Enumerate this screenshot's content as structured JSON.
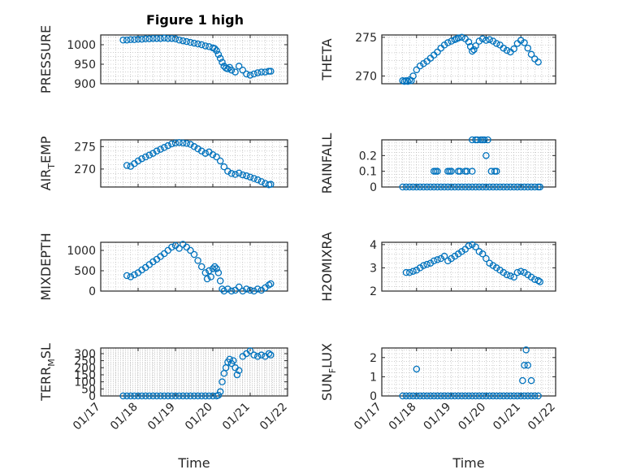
{
  "figure": {
    "title": "Figure 1 high"
  },
  "chart_data": [
    {
      "id": "pressure",
      "type": "scatter",
      "ylabel": "PRESSURE",
      "ylim": [
        900,
        1025
      ],
      "yticks": [
        900,
        950,
        1000
      ],
      "x": [
        17.6,
        17.7,
        17.8,
        17.9,
        18.0,
        18.1,
        18.2,
        18.3,
        18.4,
        18.5,
        18.6,
        18.7,
        18.8,
        18.9,
        19.0,
        19.1,
        19.2,
        19.3,
        19.4,
        19.5,
        19.6,
        19.7,
        19.8,
        19.9,
        20.0,
        20.05,
        20.1,
        20.15,
        20.2,
        20.25,
        20.3,
        20.35,
        20.4,
        20.45,
        20.5,
        20.6,
        20.7,
        20.8,
        20.9,
        21.0,
        21.1,
        21.2,
        21.3,
        21.4,
        21.5,
        21.55
      ],
      "y": [
        1012,
        1012,
        1013,
        1013,
        1014,
        1014,
        1015,
        1015,
        1016,
        1016,
        1016,
        1017,
        1016,
        1016,
        1015,
        1012,
        1010,
        1008,
        1006,
        1004,
        1002,
        1000,
        997,
        995,
        992,
        990,
        985,
        975,
        965,
        955,
        945,
        940,
        938,
        942,
        935,
        930,
        945,
        935,
        925,
        922,
        925,
        928,
        930,
        930,
        932,
        932
      ]
    },
    {
      "id": "theta",
      "type": "scatter",
      "ylabel": "THETA",
      "ylim": [
        269,
        275.3
      ],
      "yticks": [
        270,
        275
      ],
      "x": [
        17.6,
        17.65,
        17.7,
        17.75,
        17.8,
        17.85,
        17.9,
        18.0,
        18.1,
        18.2,
        18.3,
        18.4,
        18.5,
        18.6,
        18.7,
        18.8,
        18.9,
        19.0,
        19.1,
        19.15,
        19.2,
        19.3,
        19.4,
        19.5,
        19.55,
        19.6,
        19.65,
        19.7,
        19.8,
        19.9,
        20.0,
        20.1,
        20.2,
        20.3,
        20.4,
        20.5,
        20.6,
        20.7,
        20.8,
        20.9,
        21.0,
        21.1,
        21.2,
        21.3,
        21.4,
        21.5
      ],
      "y": [
        269.4,
        269.3,
        269.4,
        269.3,
        269.5,
        269.4,
        270.0,
        270.8,
        271.3,
        271.6,
        271.9,
        272.3,
        272.7,
        273.1,
        273.6,
        274.0,
        274.3,
        274.5,
        274.7,
        274.8,
        274.9,
        275.0,
        274.8,
        274.4,
        273.8,
        273.2,
        273.4,
        273.9,
        274.5,
        274.8,
        274.6,
        274.7,
        274.5,
        274.2,
        274.0,
        273.6,
        273.3,
        273.1,
        273.5,
        274.2,
        274.6,
        274.3,
        273.6,
        272.8,
        272.2,
        271.8
      ]
    },
    {
      "id": "airtemp",
      "type": "scatter",
      "ylabel": "AIR_TEMP",
      "ylim": [
        266,
        276.5
      ],
      "yticks": [
        270,
        275
      ],
      "x": [
        17.7,
        17.8,
        17.9,
        18.0,
        18.1,
        18.2,
        18.3,
        18.4,
        18.5,
        18.6,
        18.7,
        18.8,
        18.9,
        19.0,
        19.1,
        19.2,
        19.3,
        19.4,
        19.5,
        19.6,
        19.7,
        19.8,
        19.9,
        20.0,
        20.1,
        20.2,
        20.3,
        20.4,
        20.5,
        20.6,
        20.7,
        20.8,
        20.9,
        21.0,
        21.1,
        21.2,
        21.3,
        21.4,
        21.5,
        21.55
      ],
      "y": [
        270.8,
        270.6,
        271.2,
        271.8,
        272.3,
        272.7,
        273.1,
        273.5,
        274.0,
        274.4,
        274.8,
        275.2,
        275.6,
        275.8,
        275.9,
        275.8,
        275.7,
        275.5,
        275.0,
        274.5,
        274.0,
        273.5,
        273.8,
        273.2,
        272.7,
        271.8,
        270.5,
        269.5,
        269.0,
        268.8,
        269.1,
        268.7,
        268.5,
        268.2,
        267.9,
        267.6,
        267.2,
        266.8,
        266.5,
        266.6
      ]
    },
    {
      "id": "rainfall",
      "type": "scatter",
      "ylabel": "RAINFALL",
      "ylim": [
        0,
        0.3
      ],
      "yticks": [
        0,
        0.1,
        0.2
      ],
      "x": [
        17.6,
        17.7,
        17.8,
        17.9,
        18.0,
        18.1,
        18.2,
        18.3,
        18.4,
        18.5,
        18.6,
        18.7,
        18.8,
        18.9,
        19.0,
        19.1,
        19.2,
        19.3,
        19.4,
        19.5,
        19.6,
        19.7,
        19.8,
        19.9,
        20.0,
        20.1,
        20.2,
        20.3,
        20.4,
        20.5,
        20.6,
        20.7,
        20.8,
        20.9,
        21.0,
        21.1,
        21.2,
        21.3,
        21.4,
        21.5,
        21.55,
        18.5,
        18.55,
        18.6,
        18.9,
        18.95,
        19.0,
        19.2,
        19.25,
        19.4,
        19.45,
        19.6,
        19.75,
        19.85,
        19.95,
        19.7,
        19.9,
        20.05,
        20.15,
        20.25,
        20.3,
        19.6,
        20.0
      ],
      "y": [
        0,
        0,
        0,
        0,
        0,
        0,
        0,
        0,
        0,
        0,
        0,
        0,
        0,
        0,
        0,
        0,
        0,
        0,
        0,
        0,
        0,
        0,
        0,
        0,
        0,
        0,
        0,
        0,
        0,
        0,
        0,
        0,
        0,
        0,
        0,
        0,
        0,
        0,
        0,
        0,
        0,
        0.1,
        0.1,
        0.1,
        0.1,
        0.1,
        0.1,
        0.1,
        0.1,
        0.1,
        0.1,
        0.3,
        0.3,
        0.3,
        0.3,
        0.3,
        0.3,
        0.3,
        0.1,
        0.1,
        0.1,
        0.1,
        0.2
      ]
    },
    {
      "id": "mixdepth",
      "type": "scatter",
      "ylabel": "MIXDEPTH",
      "ylim": [
        0,
        1200
      ],
      "yticks": [
        0,
        500,
        1000
      ],
      "x": [
        17.7,
        17.8,
        17.9,
        18.0,
        18.1,
        18.2,
        18.3,
        18.4,
        18.5,
        18.6,
        18.7,
        18.8,
        18.9,
        19.0,
        19.1,
        19.2,
        19.3,
        19.4,
        19.5,
        19.6,
        19.7,
        19.8,
        19.85,
        19.9,
        19.95,
        20.0,
        20.05,
        20.1,
        20.15,
        20.2,
        20.25,
        20.3,
        20.4,
        20.5,
        20.6,
        20.7,
        20.8,
        20.9,
        21.0,
        21.1,
        21.2,
        21.3,
        21.4,
        21.5,
        21.55
      ],
      "y": [
        380,
        350,
        400,
        450,
        520,
        580,
        650,
        720,
        780,
        850,
        920,
        1000,
        1080,
        1120,
        1050,
        1150,
        1080,
        1000,
        900,
        750,
        600,
        450,
        300,
        500,
        350,
        550,
        600,
        550,
        450,
        250,
        50,
        0,
        50,
        0,
        20,
        100,
        0,
        50,
        20,
        0,
        50,
        20,
        80,
        150,
        180
      ]
    },
    {
      "id": "h2omixra",
      "type": "scatter",
      "ylabel": "H2OMIXRA",
      "ylim": [
        2,
        4.1
      ],
      "yticks": [
        2,
        3,
        4
      ],
      "x": [
        17.7,
        17.8,
        17.9,
        18.0,
        18.1,
        18.2,
        18.3,
        18.4,
        18.5,
        18.6,
        18.7,
        18.8,
        18.9,
        19.0,
        19.1,
        19.2,
        19.3,
        19.4,
        19.5,
        19.6,
        19.7,
        19.8,
        19.9,
        20.0,
        20.1,
        20.2,
        20.3,
        20.4,
        20.5,
        20.6,
        20.7,
        20.8,
        20.9,
        21.0,
        21.1,
        21.2,
        21.3,
        21.4,
        21.5,
        21.55
      ],
      "y": [
        2.8,
        2.8,
        2.85,
        2.9,
        3.0,
        3.1,
        3.15,
        3.2,
        3.3,
        3.35,
        3.4,
        3.5,
        3.3,
        3.4,
        3.5,
        3.6,
        3.7,
        3.8,
        3.95,
        4.0,
        3.9,
        3.7,
        3.6,
        3.4,
        3.2,
        3.1,
        3.0,
        2.9,
        2.8,
        2.7,
        2.65,
        2.6,
        2.8,
        2.85,
        2.8,
        2.7,
        2.6,
        2.5,
        2.45,
        2.4
      ]
    },
    {
      "id": "terrmsl",
      "type": "scatter",
      "ylabel": "TERR_MSL",
      "ylim": [
        0,
        340
      ],
      "yticks": [
        0,
        50,
        100,
        150,
        200,
        250,
        300
      ],
      "x": [
        17.6,
        17.7,
        17.8,
        17.9,
        18.0,
        18.1,
        18.2,
        18.3,
        18.4,
        18.5,
        18.6,
        18.7,
        18.8,
        18.9,
        19.0,
        19.1,
        19.2,
        19.3,
        19.4,
        19.5,
        19.6,
        19.7,
        19.8,
        19.9,
        20.0,
        20.1,
        20.15,
        20.2,
        20.25,
        20.3,
        20.35,
        20.4,
        20.45,
        20.5,
        20.55,
        20.6,
        20.65,
        20.7,
        20.8,
        20.9,
        21.0,
        21.1,
        21.2,
        21.3,
        21.4,
        21.5,
        21.55
      ],
      "y": [
        0,
        0,
        0,
        0,
        0,
        0,
        0,
        0,
        0,
        0,
        0,
        0,
        0,
        0,
        0,
        0,
        0,
        0,
        0,
        0,
        0,
        0,
        0,
        0,
        0,
        0,
        5,
        30,
        100,
        160,
        200,
        240,
        260,
        230,
        250,
        200,
        150,
        180,
        280,
        300,
        320,
        290,
        280,
        290,
        280,
        300,
        290
      ]
    },
    {
      "id": "sunflux",
      "type": "scatter",
      "ylabel": "SUN_FLUX",
      "ylim": [
        0,
        2.5
      ],
      "yticks": [
        0,
        1,
        2
      ],
      "x": [
        17.6,
        17.7,
        17.8,
        17.9,
        18.0,
        18.1,
        18.2,
        18.3,
        18.4,
        18.5,
        18.6,
        18.7,
        18.8,
        18.9,
        19.0,
        19.1,
        19.2,
        19.3,
        19.4,
        19.5,
        19.6,
        19.7,
        19.8,
        19.9,
        20.0,
        20.1,
        20.2,
        20.3,
        20.4,
        20.5,
        20.6,
        20.7,
        20.8,
        20.9,
        21.0,
        21.1,
        21.2,
        21.3,
        21.4,
        21.5,
        18.0,
        21.05,
        21.1,
        21.15,
        21.2,
        21.3
      ],
      "y": [
        0,
        0,
        0,
        0,
        0,
        0,
        0,
        0,
        0,
        0,
        0,
        0,
        0,
        0,
        0,
        0,
        0,
        0,
        0,
        0,
        0,
        0,
        0,
        0,
        0,
        0,
        0,
        0,
        0,
        0,
        0,
        0,
        0,
        0,
        0,
        0,
        0,
        0,
        0,
        0,
        1.4,
        0.8,
        1.6,
        2.4,
        1.6,
        0.8
      ]
    }
  ],
  "xaxis": {
    "xlim": [
      17,
      22
    ],
    "ticks": [
      17,
      18,
      19,
      20,
      21,
      22
    ],
    "ticklabels": [
      "01/17",
      "01/18",
      "01/19",
      "01/20",
      "01/21",
      "01/22"
    ],
    "label": "Time"
  },
  "colors": {
    "marker": "#0072BD",
    "axis": "#262626",
    "grid": "#b0b0b0"
  }
}
